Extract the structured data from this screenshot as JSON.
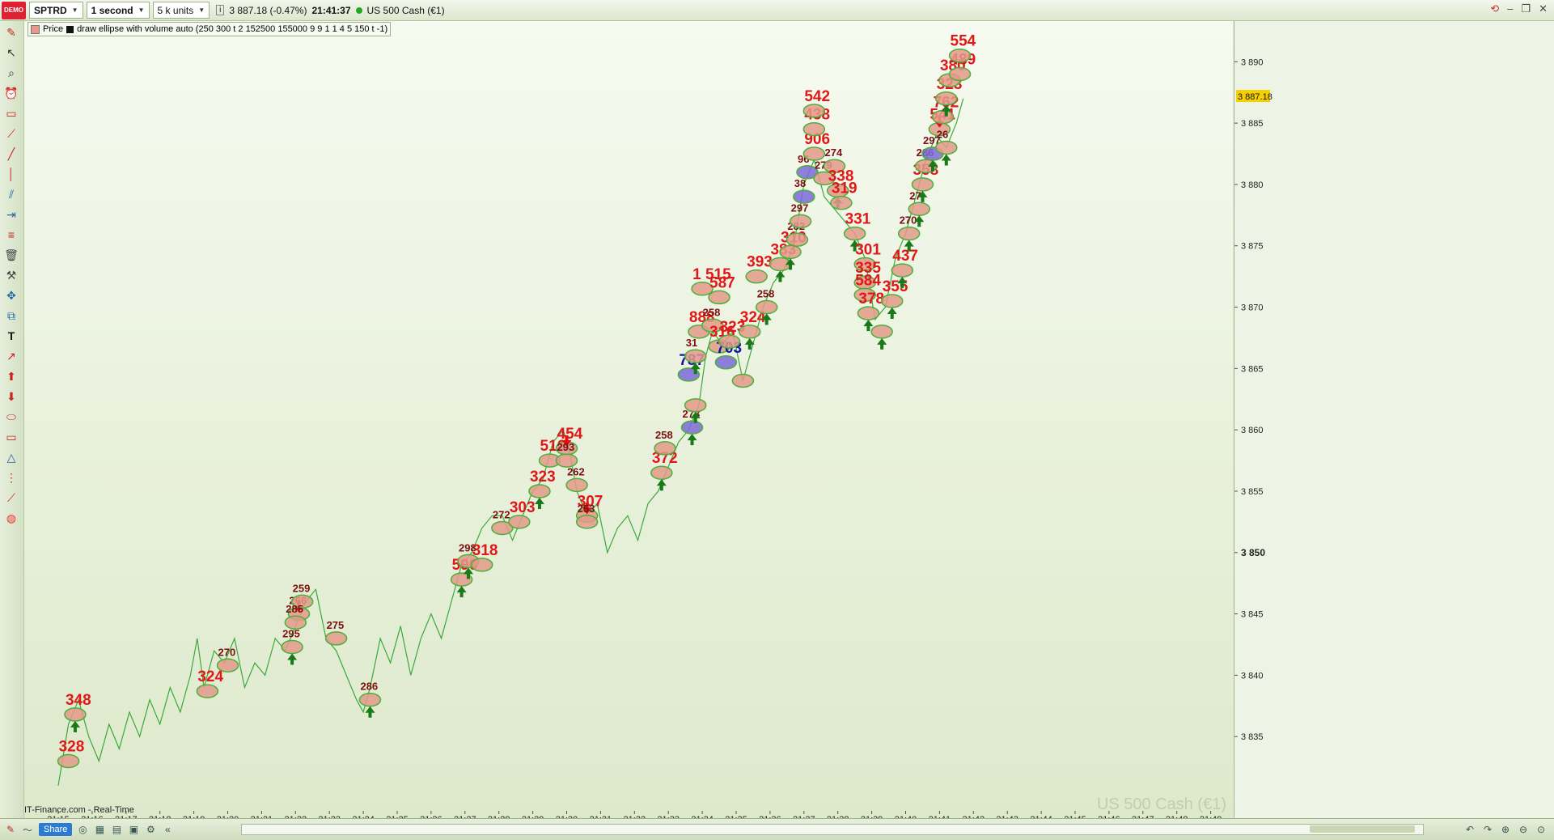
{
  "toolbar": {
    "logo": "DEMO",
    "symbol": "SPTRD",
    "timeframe": "1 second",
    "units": "5 k units",
    "info_icon": "i",
    "price": "3 887.18 (-0.47%)",
    "time": "21:41:37",
    "instrument": "US 500 Cash (€1)"
  },
  "legend": {
    "price_label": "Price",
    "indicator_label": "draw ellipse with volume auto (250 300 t 2 152500 155000 9 9 1 1 4 5 150 t -1)"
  },
  "chart": {
    "source": "IT-Finance.com - Real-Time",
    "watermark": "US 500 Cash (€1)",
    "last_price_tag": "3 887.18",
    "colors": {
      "line": "#3aa83a",
      "ellipse_fill": "#e39a8a",
      "ellipse_stroke": "#4caf3a",
      "blue_fill": "#7b6ad8",
      "arrow_up": "#1a7a1a",
      "arrow_down": "#e01010",
      "label_red": "#e01818",
      "label_blue": "#1515a8"
    }
  },
  "chart_data": {
    "type": "line",
    "x_ticks": [
      "21:15",
      "21:16",
      "21:17",
      "21:18",
      "21:19",
      "21:20",
      "21:21",
      "21:22",
      "21:23",
      "21:24",
      "21:25",
      "21:26",
      "21:27",
      "21:28",
      "21:29",
      "21:30",
      "21:31",
      "21:32",
      "21:33",
      "21:34",
      "21:35",
      "21:36",
      "21:37",
      "21:38",
      "21:39",
      "21:40",
      "21:41",
      "21:42",
      "21:43",
      "21:44",
      "21:45",
      "21:46",
      "21:47",
      "21:48",
      "21:49"
    ],
    "y_ticks": [
      "3 890",
      "3 885",
      "3 880",
      "3 875",
      "3 870",
      "3 865",
      "3 860",
      "3 855",
      "3 850",
      "3 845",
      "3 840",
      "3 835"
    ],
    "ylim": [
      3830,
      3892
    ],
    "price_path": [
      [
        15.0,
        3831
      ],
      [
        15.3,
        3836
      ],
      [
        15.6,
        3838
      ],
      [
        15.9,
        3835
      ],
      [
        16.2,
        3833
      ],
      [
        16.5,
        3836
      ],
      [
        16.8,
        3834
      ],
      [
        17.1,
        3837
      ],
      [
        17.4,
        3835
      ],
      [
        17.7,
        3838
      ],
      [
        18.0,
        3836
      ],
      [
        18.3,
        3839
      ],
      [
        18.6,
        3837
      ],
      [
        18.9,
        3840
      ],
      [
        19.1,
        3843
      ],
      [
        19.3,
        3839
      ],
      [
        19.6,
        3842
      ],
      [
        19.9,
        3841
      ],
      [
        20.2,
        3843
      ],
      [
        20.5,
        3839
      ],
      [
        20.8,
        3841
      ],
      [
        21.1,
        3840
      ],
      [
        21.4,
        3843
      ],
      [
        21.7,
        3842
      ],
      [
        22.0,
        3844
      ],
      [
        22.3,
        3846
      ],
      [
        22.6,
        3847
      ],
      [
        22.9,
        3843
      ],
      [
        23.2,
        3842
      ],
      [
        23.5,
        3840
      ],
      [
        23.8,
        3838
      ],
      [
        24.0,
        3837
      ],
      [
        24.2,
        3839
      ],
      [
        24.5,
        3843
      ],
      [
        24.8,
        3841
      ],
      [
        25.1,
        3844
      ],
      [
        25.4,
        3840
      ],
      [
        25.7,
        3843
      ],
      [
        26.0,
        3845
      ],
      [
        26.3,
        3843
      ],
      [
        26.6,
        3846
      ],
      [
        26.9,
        3849
      ],
      [
        27.2,
        3850
      ],
      [
        27.5,
        3852
      ],
      [
        27.8,
        3853
      ],
      [
        28.1,
        3853
      ],
      [
        28.4,
        3851
      ],
      [
        28.7,
        3853
      ],
      [
        29.0,
        3855
      ],
      [
        29.3,
        3856
      ],
      [
        29.6,
        3859
      ],
      [
        29.9,
        3860
      ],
      [
        30.1,
        3858
      ],
      [
        30.3,
        3855
      ],
      [
        30.6,
        3853
      ],
      [
        30.9,
        3854
      ],
      [
        31.2,
        3850
      ],
      [
        31.5,
        3852
      ],
      [
        31.8,
        3853
      ],
      [
        32.1,
        3851
      ],
      [
        32.4,
        3854
      ],
      [
        32.7,
        3855
      ],
      [
        33.0,
        3857
      ],
      [
        33.3,
        3859
      ],
      [
        33.6,
        3860
      ],
      [
        33.9,
        3862
      ],
      [
        34.1,
        3866
      ],
      [
        34.3,
        3868
      ],
      [
        34.6,
        3867
      ],
      [
        34.9,
        3868
      ],
      [
        35.2,
        3864
      ],
      [
        35.5,
        3867
      ],
      [
        35.8,
        3870
      ],
      [
        36.1,
        3872
      ],
      [
        36.4,
        3873
      ],
      [
        36.7,
        3875
      ],
      [
        37.0,
        3880
      ],
      [
        37.3,
        3882
      ],
      [
        37.6,
        3879
      ],
      [
        37.9,
        3878
      ],
      [
        38.2,
        3877
      ],
      [
        38.5,
        3876
      ],
      [
        38.8,
        3874
      ],
      [
        39.1,
        3869
      ],
      [
        39.4,
        3870
      ],
      [
        39.7,
        3874
      ],
      [
        40.0,
        3876
      ],
      [
        40.3,
        3879
      ],
      [
        40.6,
        3882
      ],
      [
        40.9,
        3884
      ],
      [
        41.2,
        3883
      ],
      [
        41.5,
        3885
      ],
      [
        41.7,
        3887
      ]
    ],
    "markers": [
      {
        "t": 15.5,
        "p": 3836.8,
        "label": "348",
        "kind": "ellipse",
        "arrow": "up"
      },
      {
        "t": 15.3,
        "p": 3833.0,
        "label": "328",
        "kind": "ellipse"
      },
      {
        "t": 19.4,
        "p": 3838.7,
        "label": "324",
        "kind": "ellipse"
      },
      {
        "t": 20.0,
        "p": 3840.8,
        "label": "270",
        "kind": "ellipse"
      },
      {
        "t": 21.9,
        "p": 3842.3,
        "label": "295",
        "kind": "ellipse",
        "arrow": "up"
      },
      {
        "t": 22.1,
        "p": 3845.0,
        "label": "266",
        "kind": "ellipse",
        "arrow": "down"
      },
      {
        "t": 22.2,
        "p": 3846.0,
        "label": "259",
        "kind": "ellipse"
      },
      {
        "t": 22.0,
        "p": 3844.3,
        "label": "285",
        "kind": "ellipse"
      },
      {
        "t": 23.2,
        "p": 3843.0,
        "label": "275",
        "kind": "ellipse"
      },
      {
        "t": 24.2,
        "p": 3838.0,
        "label": "286",
        "kind": "ellipse",
        "arrow": "up"
      },
      {
        "t": 26.9,
        "p": 3847.8,
        "label": "596",
        "kind": "ellipse",
        "arrow": "up"
      },
      {
        "t": 27.1,
        "p": 3849.3,
        "label": "298",
        "kind": "ellipse",
        "arrow": "up"
      },
      {
        "t": 27.5,
        "p": 3849.0,
        "label": "318",
        "kind": "ellipse"
      },
      {
        "t": 28.1,
        "p": 3852.0,
        "label": "272",
        "kind": "ellipse"
      },
      {
        "t": 28.6,
        "p": 3852.5,
        "label": "303",
        "kind": "ellipse"
      },
      {
        "t": 29.2,
        "p": 3855.0,
        "label": "323",
        "kind": "ellipse",
        "arrow": "up"
      },
      {
        "t": 29.5,
        "p": 3857.5,
        "label": "516",
        "kind": "ellipse"
      },
      {
        "t": 30.0,
        "p": 3858.5,
        "label": "454",
        "kind": "ellipse",
        "arrow": "down"
      },
      {
        "t": 30.0,
        "p": 3857.5,
        "label": "293",
        "kind": "ellipse"
      },
      {
        "t": 30.3,
        "p": 3855.5,
        "label": "262",
        "kind": "ellipse"
      },
      {
        "t": 30.6,
        "p": 3853.0,
        "label": "307",
        "kind": "ellipse",
        "arrow": "down"
      },
      {
        "t": 30.6,
        "p": 3852.5,
        "label": "253",
        "kind": "ellipse"
      },
      {
        "t": 32.8,
        "p": 3856.5,
        "label": "372",
        "kind": "ellipse",
        "arrow": "up"
      },
      {
        "t": 32.9,
        "p": 3858.5,
        "label": "258",
        "kind": "ellipse"
      },
      {
        "t": 33.7,
        "p": 3860.2,
        "label": "273",
        "kind": "blue",
        "arrow": "up"
      },
      {
        "t": 33.8,
        "p": 3862.0,
        "label": "",
        "kind": "ellipse",
        "arrow": "up"
      },
      {
        "t": 33.6,
        "p": 3864.5,
        "label": "787",
        "kind": "blue"
      },
      {
        "t": 33.8,
        "p": 3866.0,
        "label": "31",
        "kind": "ellipse",
        "arrow": "up"
      },
      {
        "t": 33.9,
        "p": 3868.0,
        "label": "888",
        "kind": "ellipse"
      },
      {
        "t": 34.0,
        "p": 3871.5,
        "label": "1 515",
        "kind": "ellipse"
      },
      {
        "t": 34.3,
        "p": 3868.5,
        "label": "258",
        "kind": "ellipse"
      },
      {
        "t": 34.5,
        "p": 3870.8,
        "label": "587",
        "kind": "ellipse"
      },
      {
        "t": 34.5,
        "p": 3866.8,
        "label": "316",
        "kind": "ellipse"
      },
      {
        "t": 34.7,
        "p": 3865.5,
        "label": "703",
        "kind": "blue"
      },
      {
        "t": 34.8,
        "p": 3867.2,
        "label": "323",
        "kind": "ellipse"
      },
      {
        "t": 35.2,
        "p": 3864.0,
        "label": "",
        "kind": "ellipse"
      },
      {
        "t": 35.4,
        "p": 3868.0,
        "label": "324",
        "kind": "ellipse",
        "arrow": "up"
      },
      {
        "t": 35.9,
        "p": 3870.0,
        "label": "258",
        "kind": "ellipse",
        "arrow": "up"
      },
      {
        "t": 35.6,
        "p": 3872.5,
        "label": "393",
        "kind": "ellipse"
      },
      {
        "t": 36.3,
        "p": 3873.5,
        "label": "383",
        "kind": "ellipse",
        "arrow": "up"
      },
      {
        "t": 36.6,
        "p": 3874.5,
        "label": "310",
        "kind": "ellipse",
        "arrow": "up"
      },
      {
        "t": 36.8,
        "p": 3875.5,
        "label": "282",
        "kind": "ellipse"
      },
      {
        "t": 36.9,
        "p": 3877.0,
        "label": "297",
        "kind": "ellipse"
      },
      {
        "t": 37.0,
        "p": 3879.0,
        "label": "38",
        "kind": "blue"
      },
      {
        "t": 37.1,
        "p": 3881.0,
        "label": "96",
        "kind": "blue"
      },
      {
        "t": 37.3,
        "p": 3882.5,
        "label": "906",
        "kind": "ellipse"
      },
      {
        "t": 37.3,
        "p": 3884.5,
        "label": "438",
        "kind": "ellipse"
      },
      {
        "t": 37.3,
        "p": 3886.0,
        "label": "542",
        "kind": "ellipse"
      },
      {
        "t": 37.6,
        "p": 3880.5,
        "label": "279",
        "kind": "ellipse"
      },
      {
        "t": 37.9,
        "p": 3881.5,
        "label": "274",
        "kind": "ellipse"
      },
      {
        "t": 38.0,
        "p": 3879.5,
        "label": "338",
        "kind": "ellipse",
        "arrow": "up"
      },
      {
        "t": 38.1,
        "p": 3878.5,
        "label": "319",
        "kind": "ellipse"
      },
      {
        "t": 38.5,
        "p": 3876.0,
        "label": "331",
        "kind": "ellipse",
        "arrow": "up"
      },
      {
        "t": 38.8,
        "p": 3873.5,
        "label": "301",
        "kind": "ellipse"
      },
      {
        "t": 38.8,
        "p": 3872.0,
        "label": "335",
        "kind": "ellipse"
      },
      {
        "t": 38.8,
        "p": 3871.0,
        "label": "584",
        "kind": "ellipse"
      },
      {
        "t": 38.9,
        "p": 3869.5,
        "label": "378",
        "kind": "ellipse",
        "arrow": "up"
      },
      {
        "t": 39.3,
        "p": 3868.0,
        "label": "",
        "kind": "ellipse",
        "arrow": "up"
      },
      {
        "t": 39.6,
        "p": 3870.5,
        "label": "355",
        "kind": "ellipse",
        "arrow": "up"
      },
      {
        "t": 39.9,
        "p": 3873.0,
        "label": "437",
        "kind": "ellipse",
        "arrow": "up"
      },
      {
        "t": 40.1,
        "p": 3876.0,
        "label": "270",
        "kind": "ellipse",
        "arrow": "up"
      },
      {
        "t": 40.4,
        "p": 3878.0,
        "label": "27",
        "kind": "ellipse",
        "arrow": "up"
      },
      {
        "t": 40.5,
        "p": 3880.0,
        "label": "358",
        "kind": "ellipse",
        "arrow": "up"
      },
      {
        "t": 40.6,
        "p": 3881.5,
        "label": "286",
        "kind": "ellipse"
      },
      {
        "t": 40.8,
        "p": 3882.5,
        "label": "297",
        "kind": "blue",
        "arrow": "up"
      },
      {
        "t": 41.0,
        "p": 3884.5,
        "label": "541",
        "kind": "ellipse",
        "arrow": "down"
      },
      {
        "t": 41.2,
        "p": 3883.0,
        "label": "26",
        "kind": "ellipse",
        "arrow": "up"
      },
      {
        "t": 41.1,
        "p": 3885.5,
        "label": "762",
        "kind": "ellipse"
      },
      {
        "t": 41.2,
        "p": 3887.0,
        "label": "323",
        "kind": "ellipse",
        "arrow": "up"
      },
      {
        "t": 41.3,
        "p": 3888.5,
        "label": "380",
        "kind": "ellipse"
      },
      {
        "t": 41.6,
        "p": 3889.0,
        "label": "489",
        "kind": "ellipse"
      },
      {
        "t": 41.6,
        "p": 3890.5,
        "label": "554",
        "kind": "ellipse"
      }
    ]
  },
  "bottom": {
    "share_label": "Share"
  }
}
